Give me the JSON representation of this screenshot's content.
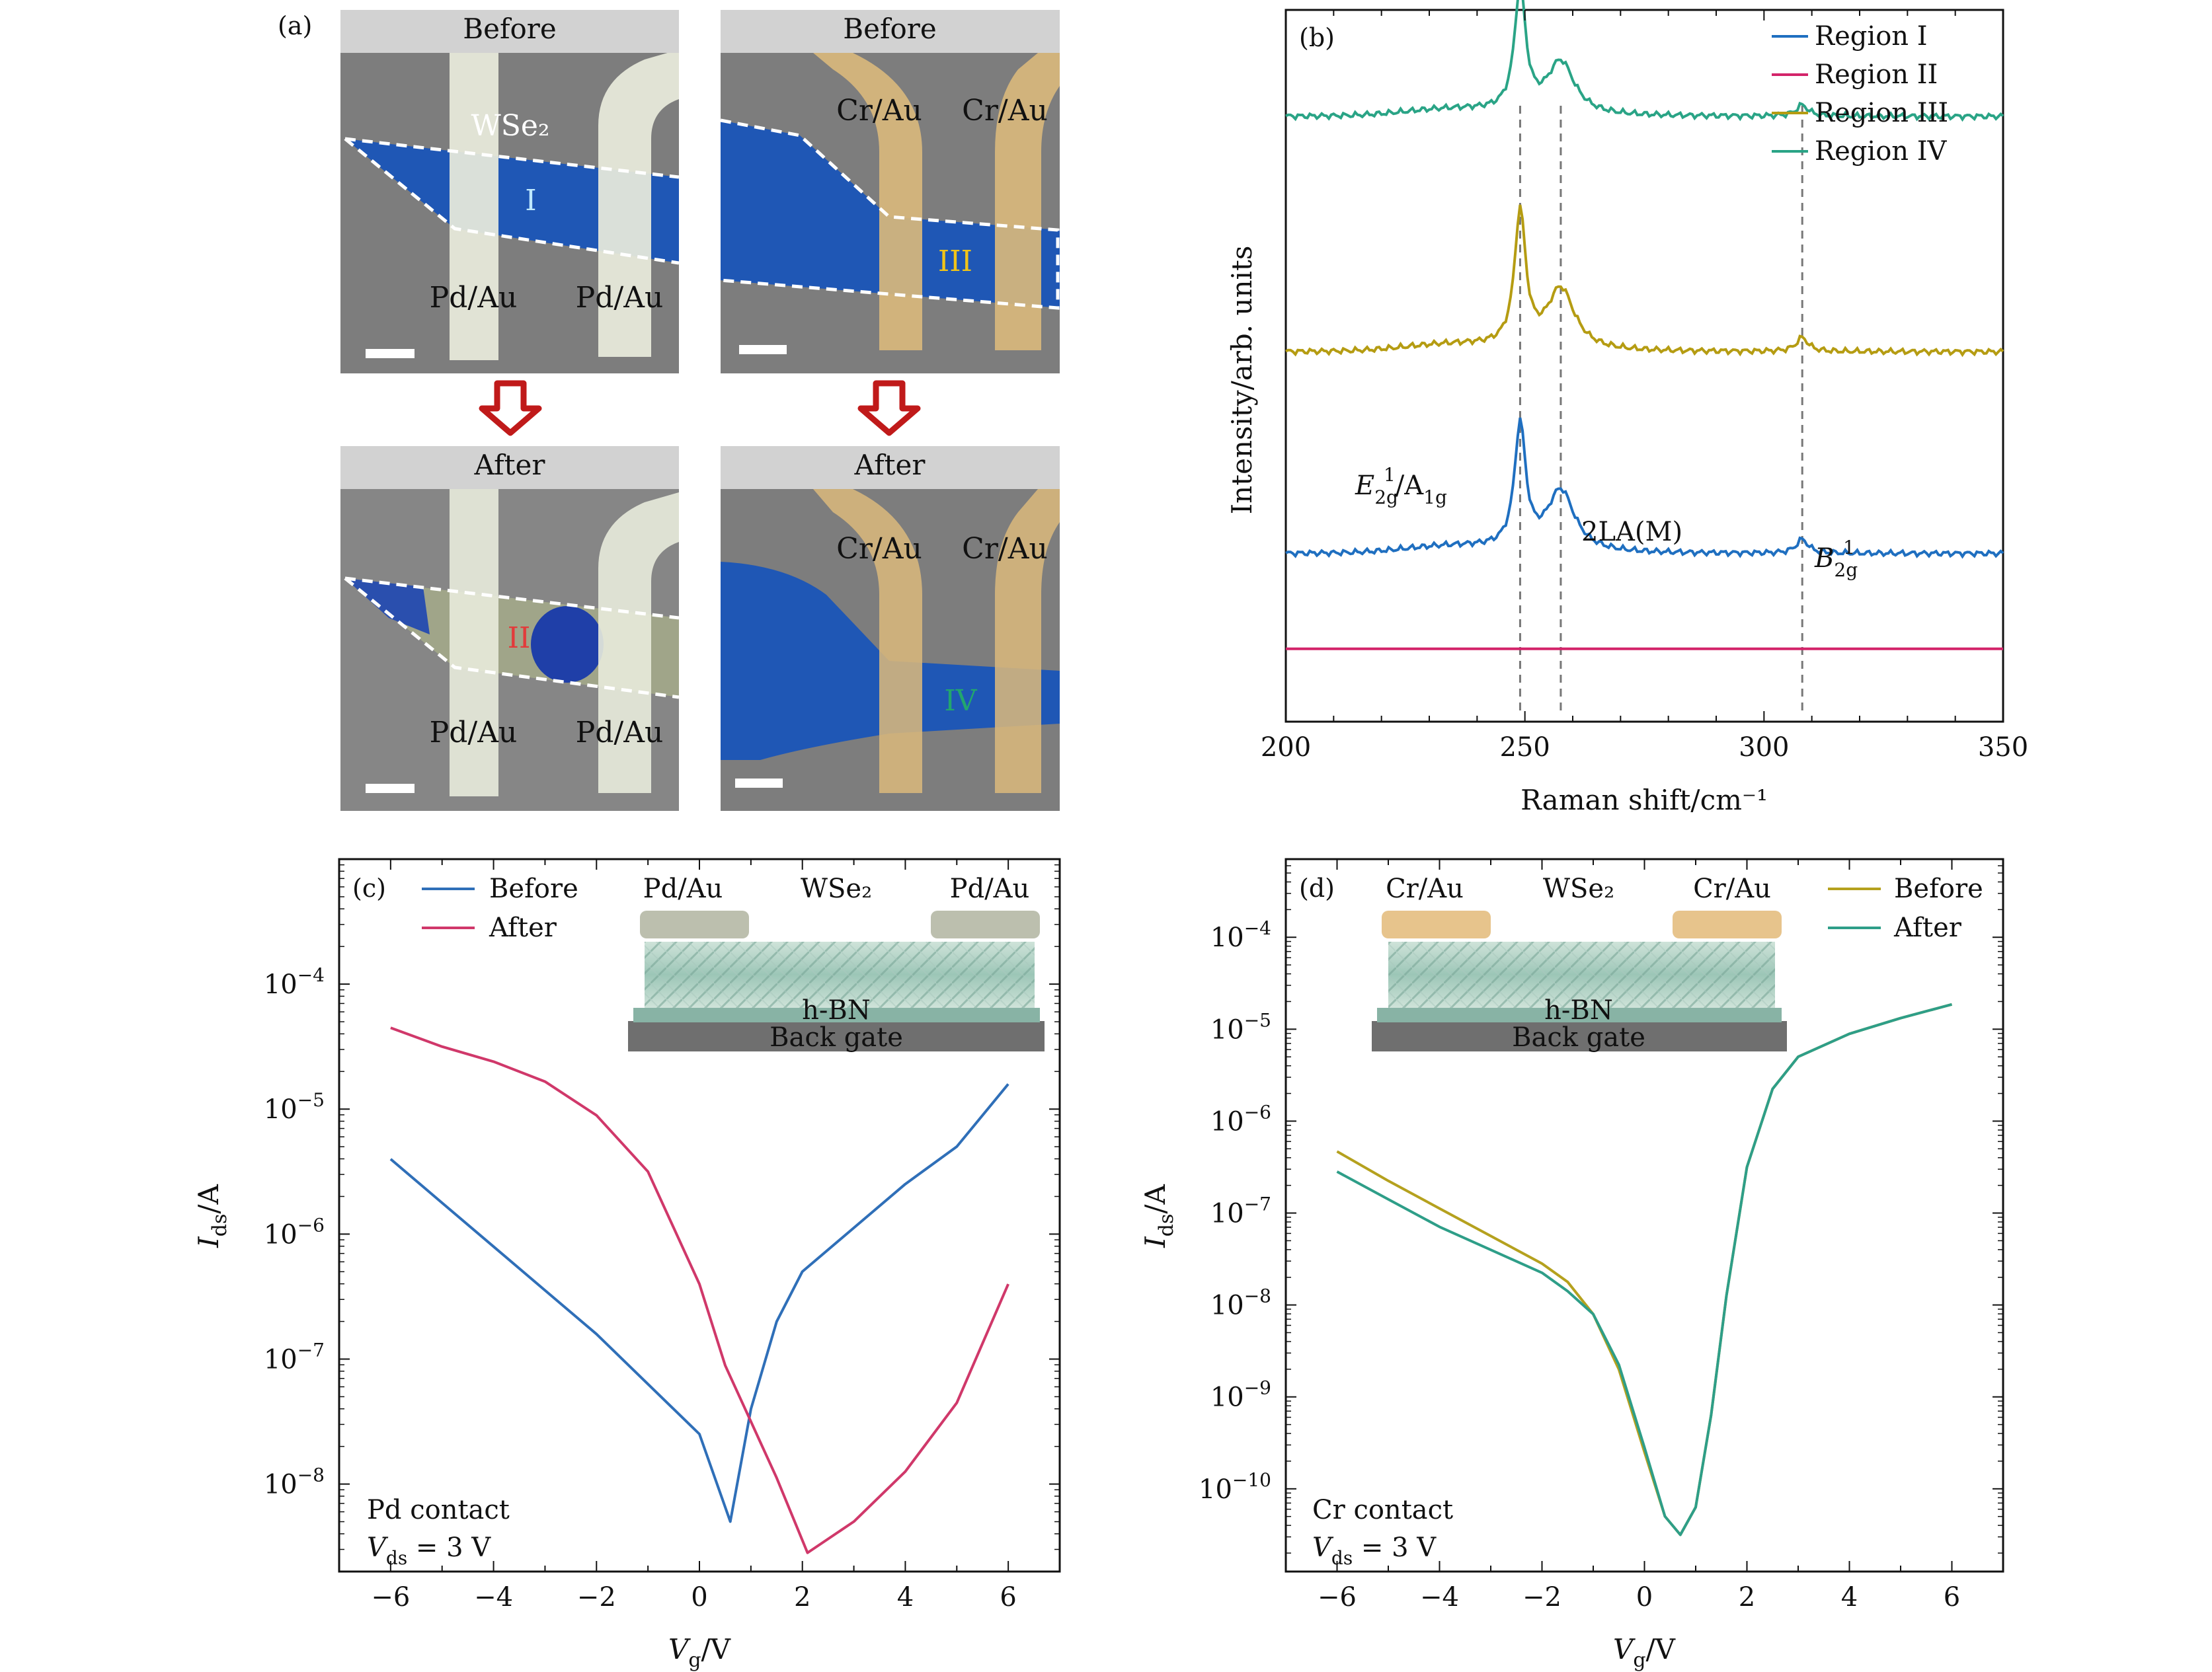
{
  "panel_a": {
    "label": "(a)",
    "images": [
      {
        "title": "Before",
        "material": "WSe₂",
        "contact_left": "Pd/Au",
        "contact_right": "Pd/Au",
        "region": "I"
      },
      {
        "title": "Before",
        "contact_left": "Cr/Au",
        "contact_right": "Cr/Au",
        "region": "III"
      },
      {
        "title": "After",
        "contact_left": "Pd/Au",
        "contact_right": "Pd/Au",
        "region": "II"
      },
      {
        "title": "After",
        "contact_left": "Cr/Au",
        "contact_right": "Cr/Au",
        "region": "IV"
      }
    ],
    "colors": {
      "flake": "#1f57b5",
      "substrate": "#7d7d7d",
      "pd_au": "#e8ebdc",
      "cr_au": "#d8b77c",
      "header": "#d2d2d2",
      "arrow": "#c01a1a"
    }
  },
  "chart_data": [
    {
      "id": "b",
      "type": "line",
      "label": "(b)",
      "xlabel": "Raman shift/cm⁻¹",
      "ylabel": "Intensity/arb. units",
      "xlim": [
        200,
        350
      ],
      "xticks": [
        "200",
        "250",
        "300",
        "350"
      ],
      "series": [
        {
          "name": "Region I",
          "color": "#1f6fc0",
          "offset": 0.3,
          "peaks": [
            [
              249,
              0.22,
              1.4
            ],
            [
              257.5,
              0.11,
              3.5
            ],
            [
              308,
              0.025,
              1.5
            ]
          ]
        },
        {
          "name": "Region II",
          "color": "#d3246a",
          "offset": 0.13,
          "peaks": []
        },
        {
          "name": "Region III",
          "color": "#b59c12",
          "offset": 0.66,
          "peaks": [
            [
              249,
              0.24,
              1.4
            ],
            [
              257.5,
              0.11,
              3.5
            ],
            [
              308,
              0.025,
              1.5
            ]
          ]
        },
        {
          "name": "Region IV",
          "color": "#2aa486",
          "offset": 1.08,
          "peaks": [
            [
              249,
              0.22,
              1.4
            ],
            [
              257.5,
              0.095,
              3.5
            ],
            [
              308,
              0.02,
              1.5
            ]
          ]
        }
      ],
      "vlines": [
        249,
        257.5,
        308
      ],
      "annotations": [
        "E",
        "2g",
        "1",
        "/A",
        "1g",
        "2LA(M)",
        "B",
        "2g",
        "1"
      ]
    },
    {
      "id": "c",
      "type": "line",
      "label": "(c)",
      "xlabel_main": "V",
      "xlabel_sub": "g",
      "xlabel_tail": "/V",
      "ylabel_main": "I",
      "ylabel_sub": "ds",
      "ylabel_tail": "/A",
      "xlim": [
        -7,
        7
      ],
      "ylim_log10": [
        -8.7,
        -3.0
      ],
      "xticks": [
        {
          "v": -6,
          "t": "−6"
        },
        {
          "v": -4,
          "t": "−4"
        },
        {
          "v": -2,
          "t": "−2"
        },
        {
          "v": 0,
          "t": "0"
        },
        {
          "v": 2,
          "t": "2"
        },
        {
          "v": 4,
          "t": "4"
        },
        {
          "v": 6,
          "t": "6"
        }
      ],
      "yticks": [
        {
          "v": -4,
          "e": "−4"
        },
        {
          "v": -5,
          "e": "−5"
        },
        {
          "v": -6,
          "e": "−6"
        },
        {
          "v": -7,
          "e": "−7"
        },
        {
          "v": -8,
          "e": "−8"
        }
      ],
      "series": [
        {
          "name": "Before",
          "color": "#2f6fb8",
          "points": [
            [
              -6,
              -5.4
            ],
            [
              -5,
              -5.75
            ],
            [
              -4,
              -6.1
            ],
            [
              -3,
              -6.45
            ],
            [
              -2,
              -6.8
            ],
            [
              -1,
              -7.2
            ],
            [
              0,
              -7.6
            ],
            [
              0.6,
              -8.3
            ],
            [
              1.0,
              -7.4
            ],
            [
              1.5,
              -6.7
            ],
            [
              2,
              -6.3
            ],
            [
              3,
              -5.95
            ],
            [
              4,
              -5.6
            ],
            [
              5,
              -5.3
            ],
            [
              6,
              -4.8
            ]
          ]
        },
        {
          "name": "After",
          "color": "#d0386a",
          "points": [
            [
              -6,
              -4.35
            ],
            [
              -5,
              -4.5
            ],
            [
              -4,
              -4.62
            ],
            [
              -3,
              -4.78
            ],
            [
              -2,
              -5.05
            ],
            [
              -1,
              -5.5
            ],
            [
              0,
              -6.4
            ],
            [
              0.5,
              -7.05
            ],
            [
              1,
              -7.5
            ],
            [
              1.5,
              -7.95
            ],
            [
              2.1,
              -8.55
            ],
            [
              3,
              -8.3
            ],
            [
              4,
              -7.9
            ],
            [
              5,
              -7.35
            ],
            [
              6,
              -6.4
            ]
          ]
        }
      ],
      "inset": {
        "left": "Pd/Au",
        "middle": "WSe₂",
        "right": "Pd/Au",
        "layer": "h-BN",
        "gate": "Back gate",
        "contact_color": "#bcbfae"
      },
      "note_line1": "Pd contact",
      "note_v": "V",
      "note_sub": "ds",
      "note_tail": " = 3 V"
    },
    {
      "id": "d",
      "type": "line",
      "label": "(d)",
      "xlabel_main": "V",
      "xlabel_sub": "g",
      "xlabel_tail": "/V",
      "ylabel_main": "I",
      "ylabel_sub": "ds",
      "ylabel_tail": "/A",
      "xlim": [
        -7,
        7
      ],
      "ylim_log10": [
        -10.9,
        -3.15
      ],
      "xticks": [
        {
          "v": -6,
          "t": "−6"
        },
        {
          "v": -4,
          "t": "−4"
        },
        {
          "v": -2,
          "t": "−2"
        },
        {
          "v": 0,
          "t": "0"
        },
        {
          "v": 2,
          "t": "2"
        },
        {
          "v": 4,
          "t": "4"
        },
        {
          "v": 6,
          "t": "6"
        }
      ],
      "yticks": [
        {
          "v": -4,
          "e": "−4"
        },
        {
          "v": -5,
          "e": "−5"
        },
        {
          "v": -6,
          "e": "−6"
        },
        {
          "v": -7,
          "e": "−7"
        },
        {
          "v": -8,
          "e": "−8"
        },
        {
          "v": -9,
          "e": "−9"
        },
        {
          "v": -10,
          "e": "−10"
        }
      ],
      "series": [
        {
          "name": "Before",
          "color": "#b5a11e",
          "points": [
            [
              -6,
              -6.33
            ],
            [
              -5,
              -6.65
            ],
            [
              -4,
              -6.95
            ],
            [
              -3,
              -7.25
            ],
            [
              -2,
              -7.55
            ],
            [
              -1.5,
              -7.75
            ],
            [
              -1,
              -8.1
            ],
            [
              -0.5,
              -8.7
            ],
            [
              0,
              -9.6
            ],
            [
              0.4,
              -10.3
            ],
            [
              0.7,
              -10.5
            ],
            [
              1.0,
              -10.2
            ],
            [
              1.3,
              -9.2
            ],
            [
              1.6,
              -7.9
            ],
            [
              2,
              -6.5
            ],
            [
              2.5,
              -5.65
            ],
            [
              3,
              -5.3
            ],
            [
              4,
              -5.05
            ],
            [
              5,
              -4.88
            ],
            [
              6,
              -4.73
            ]
          ]
        },
        {
          "name": "After",
          "color": "#2e9e88",
          "points": [
            [
              -6,
              -6.55
            ],
            [
              -5,
              -6.85
            ],
            [
              -4,
              -7.15
            ],
            [
              -3,
              -7.4
            ],
            [
              -2,
              -7.65
            ],
            [
              -1.5,
              -7.85
            ],
            [
              -1,
              -8.1
            ],
            [
              -0.5,
              -8.65
            ],
            [
              0,
              -9.55
            ],
            [
              0.4,
              -10.3
            ],
            [
              0.7,
              -10.5
            ],
            [
              1.0,
              -10.2
            ],
            [
              1.3,
              -9.2
            ],
            [
              1.6,
              -7.9
            ],
            [
              2,
              -6.5
            ],
            [
              2.5,
              -5.65
            ],
            [
              3,
              -5.3
            ],
            [
              4,
              -5.05
            ],
            [
              5,
              -4.88
            ],
            [
              6,
              -4.73
            ]
          ]
        }
      ],
      "inset": {
        "left": "Cr/Au",
        "middle": "WSe₂",
        "right": "Cr/Au",
        "layer": "h-BN",
        "gate": "Back gate",
        "contact_color": "#e7c48c"
      },
      "note_line1": "Cr contact",
      "note_v": "V",
      "note_sub": "ds",
      "note_tail": " = 3 V"
    }
  ]
}
